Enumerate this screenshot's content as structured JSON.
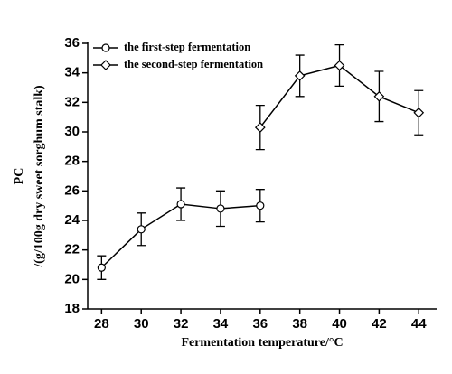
{
  "chart_data": {
    "type": "line",
    "x_label": "Fermentation temperature/°C",
    "y_label": [
      "PC",
      "/(g/100g dry sweet sorghum stalk)"
    ],
    "xlim": [
      27.3,
      44.9
    ],
    "xticks": [
      28,
      30,
      32,
      34,
      36,
      38,
      40,
      42,
      44
    ],
    "ylim": [
      18,
      36
    ],
    "yticks": [
      18,
      20,
      22,
      24,
      26,
      28,
      30,
      32,
      34,
      36
    ],
    "legend": "upper left",
    "series": [
      {
        "name": "the first-step fermentation",
        "color": "#000000",
        "marker": "circle",
        "x": [
          28,
          30,
          32,
          34,
          36
        ],
        "values": [
          20.8,
          23.4,
          25.1,
          24.8,
          25.0
        ],
        "errors": [
          0.8,
          1.1,
          1.1,
          1.2,
          1.1
        ]
      },
      {
        "name": "the second-step fermentation",
        "color": "#000000",
        "marker": "diamond",
        "x": [
          36,
          38,
          40,
          42,
          44
        ],
        "values": [
          30.3,
          33.8,
          34.5,
          32.4,
          31.3
        ],
        "errors": [
          1.5,
          1.4,
          1.4,
          1.7,
          1.5
        ]
      }
    ]
  }
}
